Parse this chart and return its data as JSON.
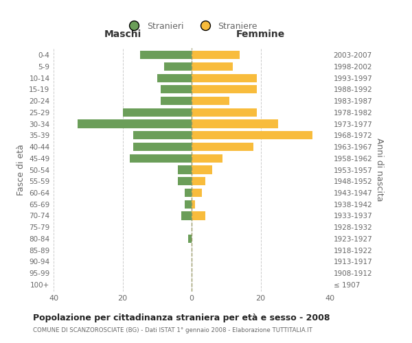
{
  "age_groups": [
    "100+",
    "95-99",
    "90-94",
    "85-89",
    "80-84",
    "75-79",
    "70-74",
    "65-69",
    "60-64",
    "55-59",
    "50-54",
    "45-49",
    "40-44",
    "35-39",
    "30-34",
    "25-29",
    "20-24",
    "15-19",
    "10-14",
    "5-9",
    "0-4"
  ],
  "birth_years": [
    "≤ 1907",
    "1908-1912",
    "1913-1917",
    "1918-1922",
    "1923-1927",
    "1928-1932",
    "1933-1937",
    "1938-1942",
    "1943-1947",
    "1948-1952",
    "1953-1957",
    "1958-1962",
    "1963-1967",
    "1968-1972",
    "1973-1977",
    "1978-1982",
    "1983-1987",
    "1988-1992",
    "1993-1997",
    "1998-2002",
    "2003-2007"
  ],
  "males": [
    0,
    0,
    0,
    0,
    1,
    0,
    3,
    2,
    2,
    4,
    4,
    18,
    17,
    17,
    33,
    20,
    9,
    9,
    10,
    8,
    15
  ],
  "females": [
    0,
    0,
    0,
    0,
    0,
    0,
    4,
    1,
    3,
    4,
    6,
    9,
    18,
    35,
    25,
    19,
    11,
    19,
    19,
    12,
    14
  ],
  "male_color": "#6b9e59",
  "female_color": "#f8bc3c",
  "bar_height": 0.72,
  "xlim": 40,
  "title": "Popolazione per cittadinanza straniera per età e sesso - 2008",
  "subtitle": "COMUNE DI SCANZOROSCIATE (BG) - Dati ISTAT 1° gennaio 2008 - Elaborazione TUTTITALIA.IT",
  "xlabel_left": "Maschi",
  "xlabel_right": "Femmine",
  "ylabel_left": "Fasce di età",
  "ylabel_right": "Anni di nascita",
  "legend_stranieri": "Stranieri",
  "legend_straniere": "Straniere",
  "bg_color": "#ffffff",
  "grid_color": "#cccccc",
  "text_color": "#666666",
  "dashed_line_color": "#999966"
}
